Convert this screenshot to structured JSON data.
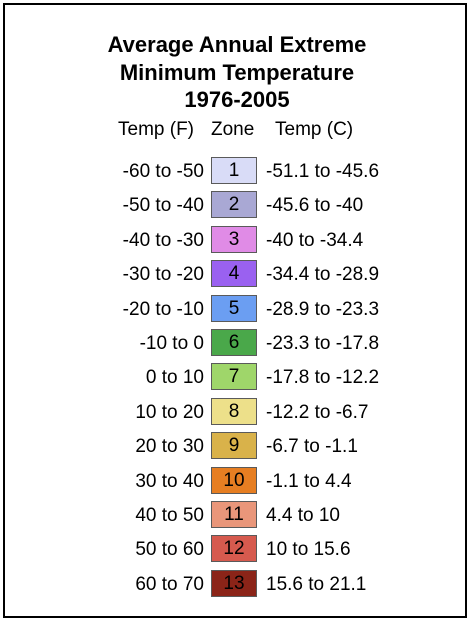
{
  "title": {
    "line1": "Average Annual Extreme",
    "line2": "Minimum Temperature",
    "line3": "1976-2005"
  },
  "headers": {
    "temp_f": "Temp (F)",
    "zone": "Zone",
    "temp_c": "Temp (C)"
  },
  "zones": [
    {
      "zone": "1",
      "temp_f": "-60 to -50",
      "temp_c": "-51.1 to -45.6",
      "color": "#d9dcf7",
      "text_color": "#000000"
    },
    {
      "zone": "2",
      "temp_f": "-50 to -40",
      "temp_c": "-45.6 to -40",
      "color": "#a9a8d4",
      "text_color": "#000000"
    },
    {
      "zone": "3",
      "temp_f": "-40 to -30",
      "temp_c": "-40 to -34.4",
      "color": "#e08be6",
      "text_color": "#000000"
    },
    {
      "zone": "4",
      "temp_f": "-30 to -20",
      "temp_c": "-34.4 to -28.9",
      "color": "#9a61f0",
      "text_color": "#000000"
    },
    {
      "zone": "5",
      "temp_f": "-20 to -10",
      "temp_c": "-28.9 to -23.3",
      "color": "#6b9ef2",
      "text_color": "#000000"
    },
    {
      "zone": "6",
      "temp_f": "-10 to 0",
      "temp_c": "-23.3 to -17.8",
      "color": "#4aa84a",
      "text_color": "#000000"
    },
    {
      "zone": "7",
      "temp_f": "0 to 10",
      "temp_c": "-17.8 to -12.2",
      "color": "#9fd66a",
      "text_color": "#000000"
    },
    {
      "zone": "8",
      "temp_f": "10 to 20",
      "temp_c": "-12.2 to -6.7",
      "color": "#ede08a",
      "text_color": "#000000"
    },
    {
      "zone": "9",
      "temp_f": "20 to 30",
      "temp_c": "-6.7 to -1.1",
      "color": "#d9b24a",
      "text_color": "#000000"
    },
    {
      "zone": "10",
      "temp_f": "30 to 40",
      "temp_c": "-1.1 to 4.4",
      "color": "#e67e22",
      "text_color": "#000000"
    },
    {
      "zone": "11",
      "temp_f": "40 to 50",
      "temp_c": "4.4 to 10",
      "color": "#e9967a",
      "text_color": "#000000"
    },
    {
      "zone": "12",
      "temp_f": "50 to 60",
      "temp_c": "10 to 15.6",
      "color": "#d65a4e",
      "text_color": "#000000"
    },
    {
      "zone": "13",
      "temp_f": "60 to 70",
      "temp_c": "15.6 to 21.1",
      "color": "#8b2418",
      "text_color": "#000000"
    }
  ]
}
